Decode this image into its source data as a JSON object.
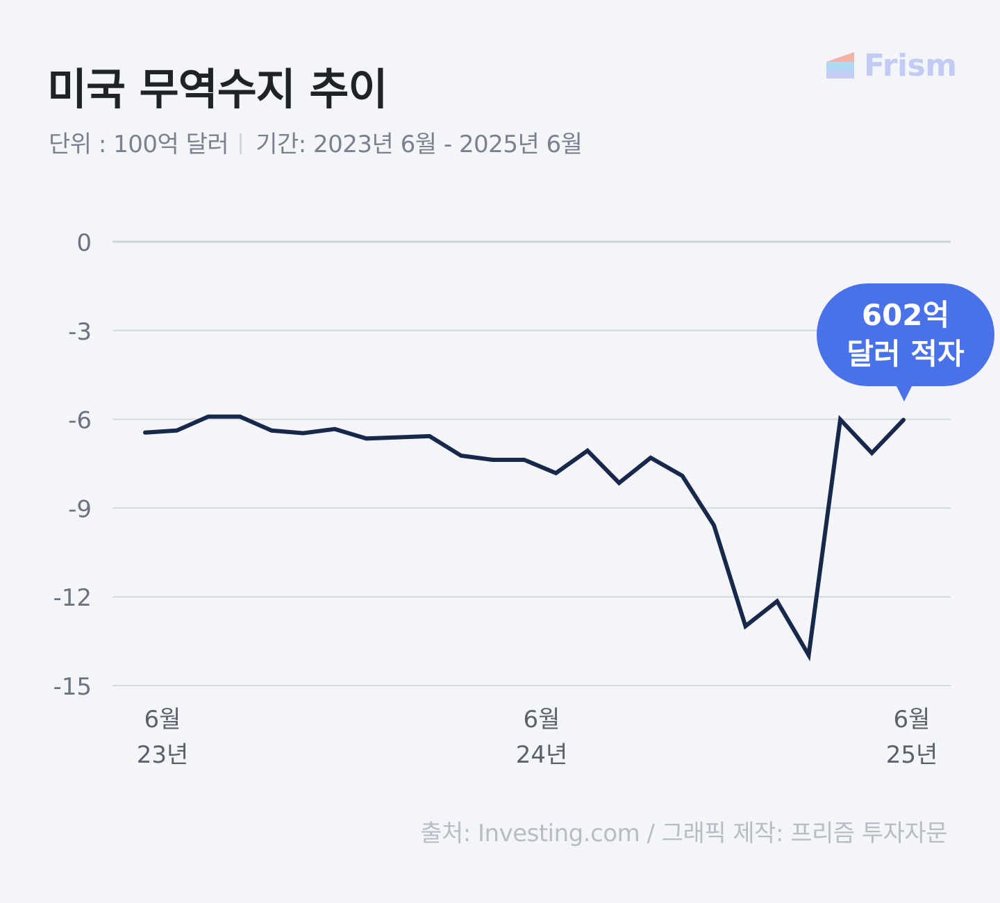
{
  "title": "미국 무역수지 추이",
  "subtitle": {
    "unit": "단위 : 100억 달러",
    "period": "기간: 2023년 6월 - 2025년 6월"
  },
  "logo": {
    "text": "Frism"
  },
  "callout": {
    "line1": "602억",
    "line2": "달러 적자"
  },
  "source": "출처: Investing.com  / 그래픽 제작: 프리즘 투자자문",
  "colors": {
    "background": "#f3f5f8",
    "line": "#17284a",
    "callout": "#4a72e8",
    "grid": "#d3d7de",
    "axis_text": "#6b7280"
  },
  "chart_data": {
    "type": "line",
    "title": "미국 무역수지 추이",
    "unit": "100억 달러",
    "ylim": [
      -15,
      0
    ],
    "yticks": [
      0,
      -3,
      -6,
      -9,
      -12,
      -15
    ],
    "grid": true,
    "x": [
      "2023-06",
      "2023-07",
      "2023-08",
      "2023-09",
      "2023-10",
      "2023-11",
      "2023-12",
      "2024-01",
      "2024-02",
      "2024-03",
      "2024-04",
      "2024-05",
      "2024-06",
      "2024-07",
      "2024-08",
      "2024-09",
      "2024-10",
      "2024-11",
      "2024-12",
      "2025-01",
      "2025-02",
      "2025-03",
      "2025-04",
      "2025-05",
      "2025-06"
    ],
    "xticks": [
      {
        "x": "2023-06",
        "month": "6월",
        "year": "23년"
      },
      {
        "x": "2024-06",
        "month": "6월",
        "year": "24년"
      },
      {
        "x": "2025-06",
        "month": "6월",
        "year": "25년"
      }
    ],
    "series": [
      {
        "values": [
          -6.45,
          -6.38,
          -5.91,
          -5.91,
          -6.38,
          -6.47,
          -6.33,
          -6.65,
          -6.61,
          -6.57,
          -7.23,
          -7.37,
          -7.37,
          -7.82,
          -7.06,
          -8.15,
          -7.3,
          -7.91,
          -9.58,
          -12.99,
          -12.15,
          -13.97,
          -6.01,
          -7.14,
          -6.02
        ]
      }
    ]
  }
}
